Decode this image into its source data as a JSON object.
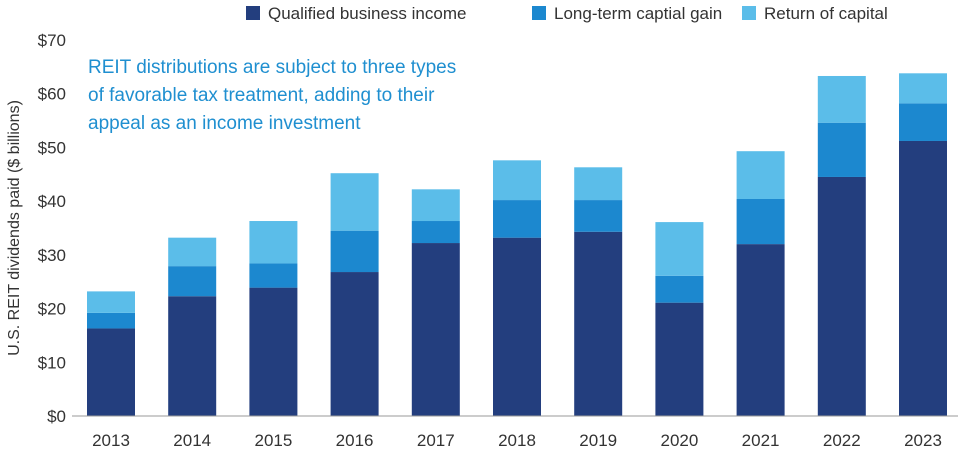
{
  "chart_data": {
    "type": "bar",
    "stacked": true,
    "categories": [
      "2013",
      "2014",
      "2015",
      "2016",
      "2017",
      "2018",
      "2019",
      "2020",
      "2021",
      "2022",
      "2023"
    ],
    "series": [
      {
        "name": "Qualified business income",
        "color": "#233e7e",
        "values": [
          16.3,
          22.3,
          23.9,
          26.8,
          32.2,
          33.2,
          34.3,
          21.1,
          32.0,
          44.5,
          51.2
        ]
      },
      {
        "name": "Long-term captial gain",
        "color": "#1c88cf",
        "values": [
          2.9,
          5.6,
          4.5,
          7.7,
          4.1,
          7.0,
          5.9,
          5.0,
          8.4,
          10.1,
          7.0
        ]
      },
      {
        "name": "Return of capital",
        "color": "#5bbde9",
        "values": [
          4.0,
          5.3,
          7.9,
          10.7,
          5.9,
          7.4,
          6.1,
          10.0,
          8.9,
          8.7,
          5.6
        ]
      }
    ],
    "y_ticks": [
      "$0",
      "$10",
      "$20",
      "$30",
      "$40",
      "$50",
      "$60",
      "$70"
    ],
    "ylim": [
      0,
      70
    ],
    "ylabel": "U.S. REIT dividends paid ($ billions)",
    "xlabel": "",
    "annotation": [
      "REIT distributions are subject to three types",
      "of favorable tax treatment, adding to their",
      "appeal as an income investment"
    ],
    "legend_position": "top",
    "grid": false
  }
}
